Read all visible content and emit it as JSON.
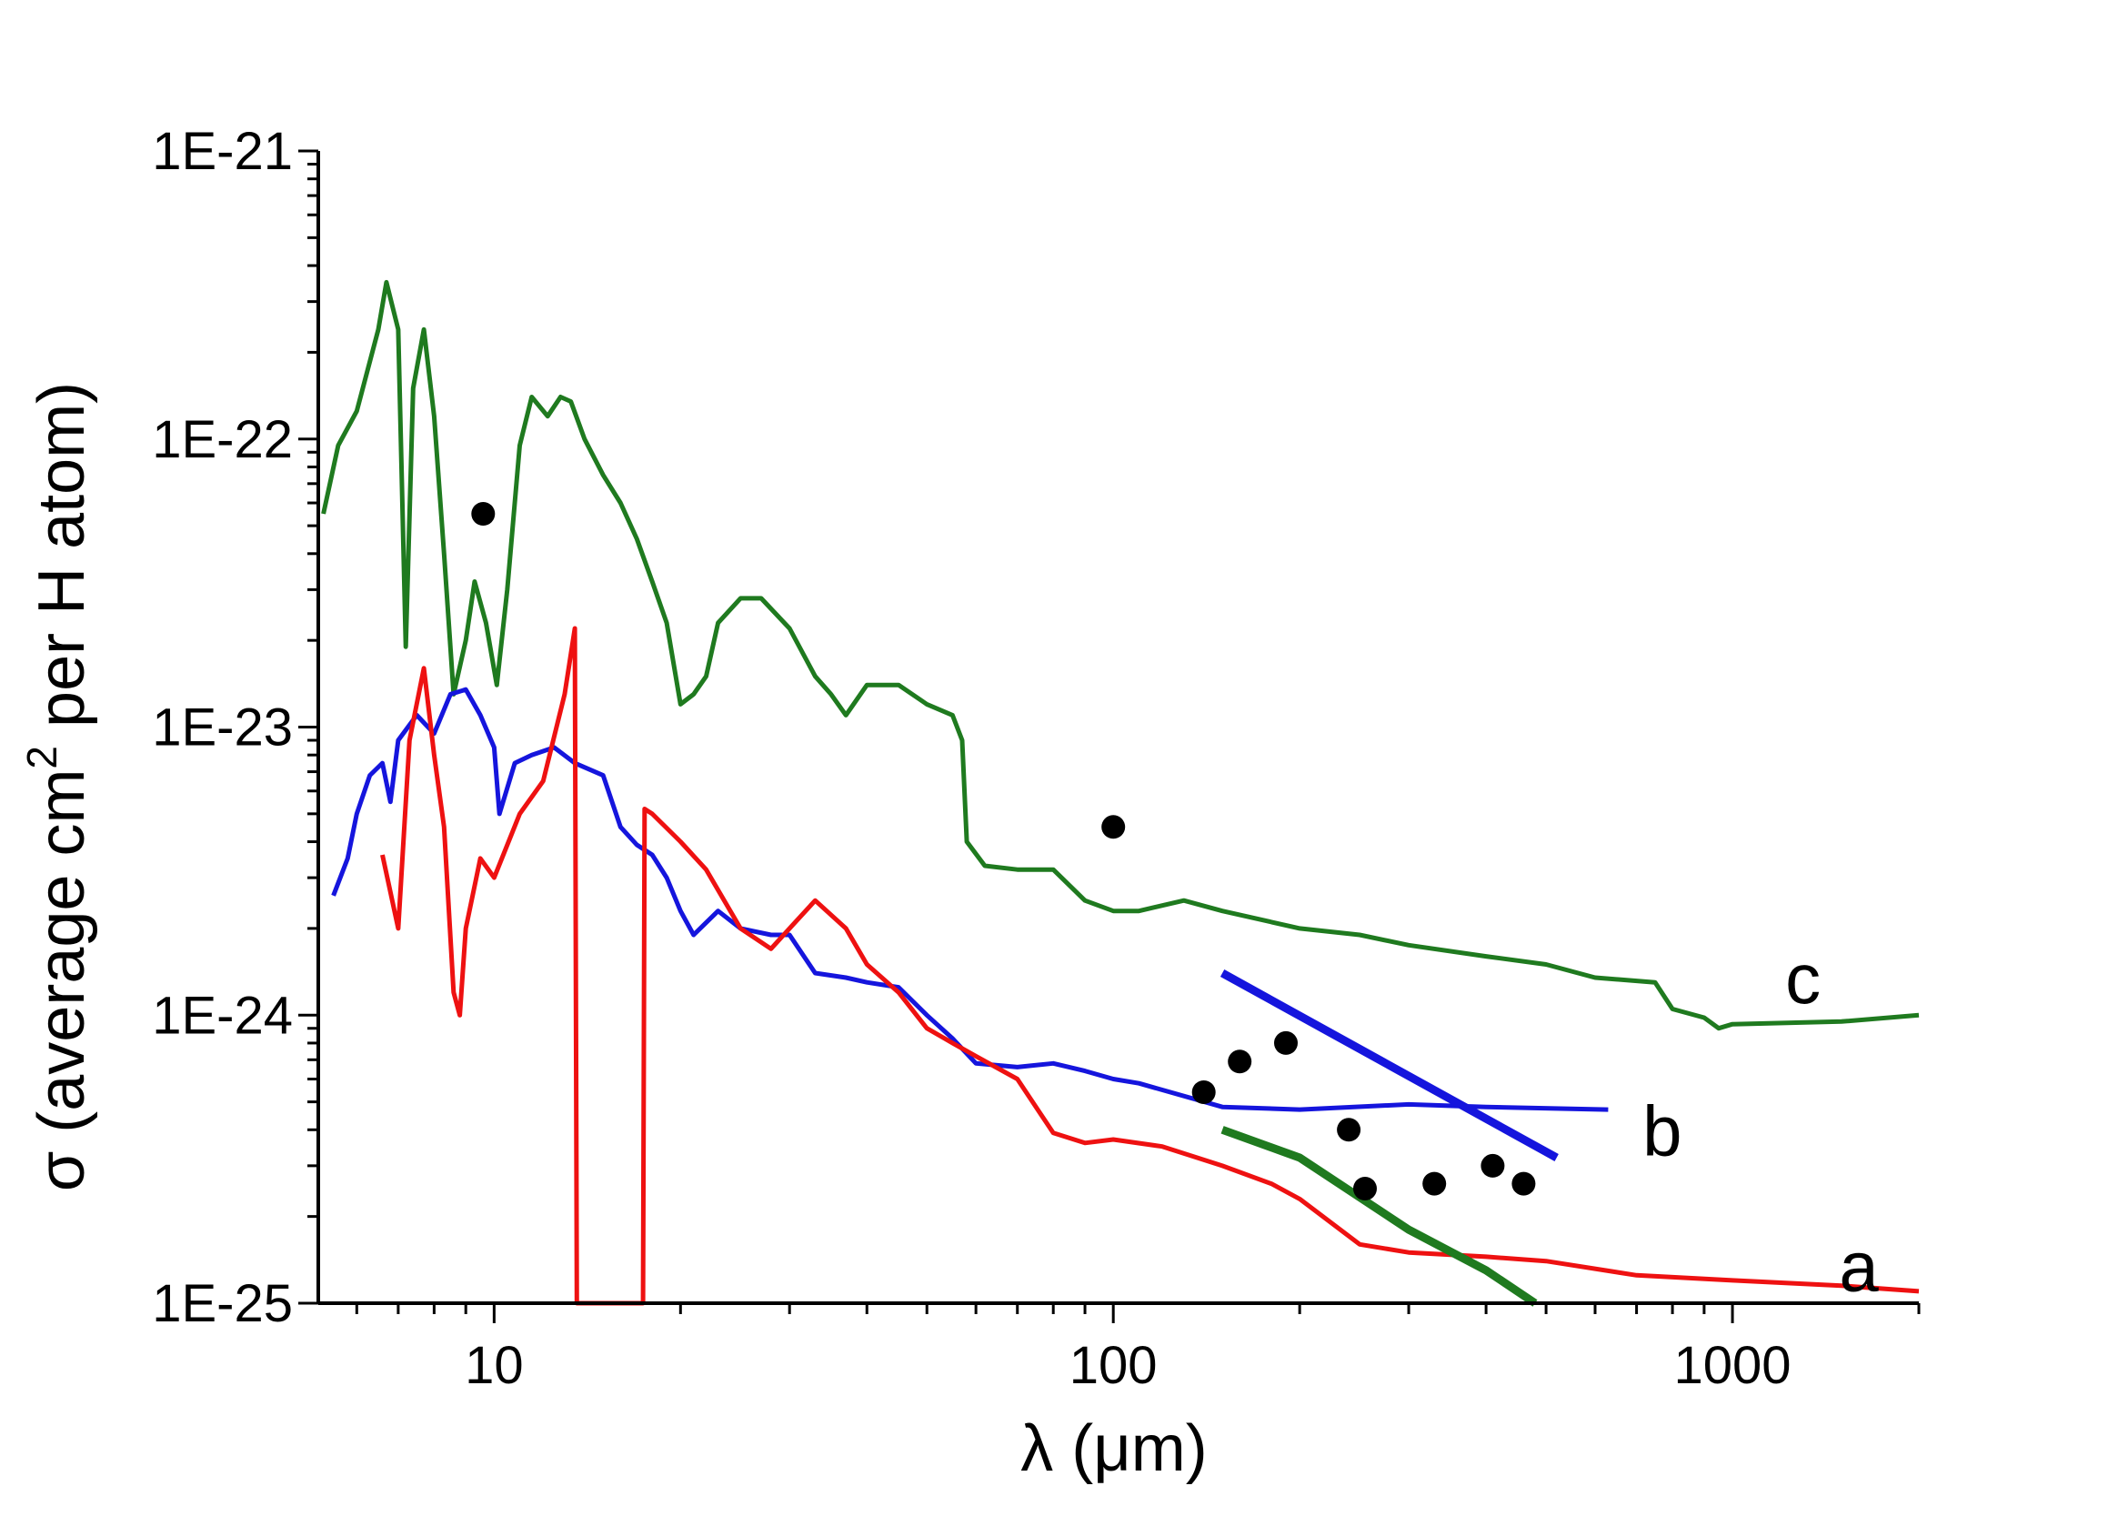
{
  "chart_data": {
    "type": "line",
    "title": "",
    "xlabel": "λ (μm)",
    "ylabel_parts": {
      "prefix": "σ (average cm",
      "superscript": "2",
      "suffix": " per H atom)"
    },
    "x_scale": "log",
    "y_scale": "log",
    "xlim": [
      5.2,
      2000
    ],
    "ylim": [
      1e-25,
      1e-21
    ],
    "x_ticks": [
      10,
      100,
      1000
    ],
    "x_tick_labels": [
      "10",
      "100",
      "1000"
    ],
    "y_ticks": [
      1e-25,
      1e-24,
      1e-23,
      1e-22,
      1e-21
    ],
    "y_tick_labels": [
      "1E-25",
      "1E-24",
      "1E-23",
      "1E-22",
      "1E-21"
    ],
    "grid": false,
    "series": [
      {
        "name": "green-spectrum",
        "label": "c",
        "color": "#1f7a1f",
        "width": 5,
        "points": [
          [
            5.3,
            5.5e-23
          ],
          [
            5.6,
            9.5e-23
          ],
          [
            6.0,
            1.25e-22
          ],
          [
            6.5,
            2.4e-22
          ],
          [
            6.7,
            3.5e-22
          ],
          [
            7.0,
            2.4e-22
          ],
          [
            7.2,
            1.9e-23
          ],
          [
            7.4,
            1.5e-22
          ],
          [
            7.7,
            2.4e-22
          ],
          [
            8.0,
            1.2e-22
          ],
          [
            8.3,
            4e-23
          ],
          [
            8.6,
            1.3e-23
          ],
          [
            9.0,
            2e-23
          ],
          [
            9.3,
            3.2e-23
          ],
          [
            9.7,
            2.3e-23
          ],
          [
            10.1,
            1.4e-23
          ],
          [
            10.5,
            3e-23
          ],
          [
            11.0,
            9.5e-23
          ],
          [
            11.5,
            1.4e-22
          ],
          [
            12.2,
            1.2e-22
          ],
          [
            12.8,
            1.4e-22
          ],
          [
            13.3,
            1.35e-22
          ],
          [
            14,
            1e-22
          ],
          [
            15,
            7.5e-23
          ],
          [
            16,
            6e-23
          ],
          [
            17,
            4.5e-23
          ],
          [
            18,
            3.2e-23
          ],
          [
            19,
            2.3e-23
          ],
          [
            20,
            1.2e-23
          ],
          [
            21,
            1.3e-23
          ],
          [
            22,
            1.5e-23
          ],
          [
            23,
            2.3e-23
          ],
          [
            25,
            2.8e-23
          ],
          [
            27,
            2.8e-23
          ],
          [
            30,
            2.2e-23
          ],
          [
            33,
            1.5e-23
          ],
          [
            35,
            1.3e-23
          ],
          [
            37,
            1.1e-23
          ],
          [
            40,
            1.4e-23
          ],
          [
            45,
            1.4e-23
          ],
          [
            50,
            1.2e-23
          ],
          [
            55,
            1.1e-23
          ],
          [
            57,
            9e-24
          ],
          [
            58,
            4e-24
          ],
          [
            62,
            3.3e-24
          ],
          [
            70,
            3.2e-24
          ],
          [
            80,
            3.2e-24
          ],
          [
            90,
            2.5e-24
          ],
          [
            100,
            2.3e-24
          ],
          [
            110,
            2.3e-24
          ],
          [
            130,
            2.5e-24
          ],
          [
            150,
            2.3e-24
          ],
          [
            200,
            2e-24
          ],
          [
            250,
            1.9e-24
          ],
          [
            300,
            1.75e-24
          ],
          [
            400,
            1.6e-24
          ],
          [
            500,
            1.5e-24
          ],
          [
            600,
            1.35e-24
          ],
          [
            750,
            1.3e-24
          ],
          [
            800,
            1.05e-24
          ],
          [
            900,
            9.8e-25
          ],
          [
            950,
            9e-25
          ],
          [
            1000,
            9.3e-25
          ],
          [
            1500,
            9.5e-25
          ],
          [
            2000,
            1e-24
          ]
        ]
      },
      {
        "name": "blue-spectrum",
        "label": "b",
        "color": "#1515dd",
        "width": 5,
        "points": [
          [
            5.5,
            2.6e-24
          ],
          [
            5.8,
            3.5e-24
          ],
          [
            6.0,
            5e-24
          ],
          [
            6.3,
            6.8e-24
          ],
          [
            6.6,
            7.5e-24
          ],
          [
            6.8,
            5.5e-24
          ],
          [
            7.0,
            9e-24
          ],
          [
            7.5,
            1.1e-23
          ],
          [
            8.0,
            9.5e-24
          ],
          [
            8.5,
            1.3e-23
          ],
          [
            9.0,
            1.35e-23
          ],
          [
            9.5,
            1.1e-23
          ],
          [
            10.0,
            8.5e-24
          ],
          [
            10.2,
            5e-24
          ],
          [
            10.8,
            7.5e-24
          ],
          [
            11.5,
            8e-24
          ],
          [
            12.5,
            8.5e-24
          ],
          [
            13.5,
            7.5e-24
          ],
          [
            15,
            6.8e-24
          ],
          [
            16,
            4.5e-24
          ],
          [
            17,
            3.9e-24
          ],
          [
            18,
            3.6e-24
          ],
          [
            19,
            3e-24
          ],
          [
            20,
            2.3e-24
          ],
          [
            21,
            1.9e-24
          ],
          [
            23,
            2.3e-24
          ],
          [
            25,
            2e-24
          ],
          [
            28,
            1.9e-24
          ],
          [
            30,
            1.9e-24
          ],
          [
            33,
            1.4e-24
          ],
          [
            37,
            1.35e-24
          ],
          [
            40,
            1.3e-24
          ],
          [
            45,
            1.25e-24
          ],
          [
            50,
            1e-24
          ],
          [
            55,
            8.3e-25
          ],
          [
            60,
            6.8e-25
          ],
          [
            70,
            6.6e-25
          ],
          [
            80,
            6.8e-25
          ],
          [
            90,
            6.4e-25
          ],
          [
            100,
            6e-25
          ],
          [
            110,
            5.8e-25
          ],
          [
            150,
            4.8e-25
          ],
          [
            200,
            4.7e-25
          ],
          [
            300,
            4.9e-25
          ],
          [
            400,
            4.8e-25
          ],
          [
            630,
            4.7e-25
          ]
        ]
      },
      {
        "name": "red-spectrum",
        "label": "a",
        "color": "#ee1111",
        "width": 5,
        "points": [
          [
            6.6,
            3.6e-24
          ],
          [
            7.0,
            2e-24
          ],
          [
            7.3,
            9e-24
          ],
          [
            7.7,
            1.6e-23
          ],
          [
            8.0,
            8e-24
          ],
          [
            8.3,
            4.5e-24
          ],
          [
            8.6,
            1.2e-24
          ],
          [
            8.8,
            1e-24
          ],
          [
            9.0,
            2e-24
          ],
          [
            9.5,
            3.5e-24
          ],
          [
            10,
            3e-24
          ],
          [
            11,
            5e-24
          ],
          [
            12,
            6.5e-24
          ],
          [
            13,
            1.3e-23
          ],
          [
            13.5,
            2.2e-23
          ],
          [
            13.6,
            1e-25
          ],
          [
            17.4,
            1e-25
          ],
          [
            17.5,
            5.2e-24
          ],
          [
            18,
            5e-24
          ],
          [
            20,
            4e-24
          ],
          [
            22,
            3.2e-24
          ],
          [
            25,
            2e-24
          ],
          [
            28,
            1.7e-24
          ],
          [
            30,
            2e-24
          ],
          [
            33,
            2.5e-24
          ],
          [
            37,
            2e-24
          ],
          [
            40,
            1.5e-24
          ],
          [
            45,
            1.2e-24
          ],
          [
            50,
            9e-25
          ],
          [
            55,
            8e-25
          ],
          [
            60,
            7.2e-25
          ],
          [
            70,
            6e-25
          ],
          [
            80,
            3.9e-25
          ],
          [
            90,
            3.6e-25
          ],
          [
            100,
            3.7e-25
          ],
          [
            120,
            3.5e-25
          ],
          [
            150,
            3e-25
          ],
          [
            180,
            2.6e-25
          ],
          [
            200,
            2.3e-25
          ],
          [
            250,
            1.6e-25
          ],
          [
            300,
            1.5e-25
          ],
          [
            400,
            1.45e-25
          ],
          [
            500,
            1.4e-25
          ],
          [
            700,
            1.25e-25
          ],
          [
            1000,
            1.2e-25
          ],
          [
            1500,
            1.15e-25
          ],
          [
            2000,
            1.1e-25
          ]
        ]
      },
      {
        "name": "blue-fit-line",
        "label": "",
        "color": "#1515dd",
        "width": 9,
        "points": [
          [
            150,
            1.4e-24
          ],
          [
            520,
            3.2e-25
          ]
        ]
      },
      {
        "name": "green-fit-line",
        "label": "",
        "color": "#1f7a1f",
        "width": 9,
        "points": [
          [
            150,
            4e-25
          ],
          [
            200,
            3.2e-25
          ],
          [
            300,
            1.8e-25
          ],
          [
            400,
            1.3e-25
          ],
          [
            480,
            1e-25
          ]
        ]
      }
    ],
    "scatter": {
      "name": "black-dots",
      "color": "#000000",
      "points": [
        [
          9.6,
          5.5e-23
        ],
        [
          100,
          4.5e-24
        ],
        [
          140,
          5.4e-25
        ],
        [
          160,
          6.9e-25
        ],
        [
          190,
          8e-25
        ],
        [
          240,
          4e-25
        ],
        [
          255,
          2.5e-25
        ],
        [
          330,
          2.6e-25
        ],
        [
          410,
          3e-25
        ],
        [
          460,
          2.6e-25
        ]
      ]
    },
    "curve_labels": [
      {
        "text": "c",
        "x": 1300,
        "y": 1.35e-24
      },
      {
        "text": "b",
        "x": 770,
        "y": 4e-25
      },
      {
        "text": "a",
        "x": 1600,
        "y": 1.35e-25
      }
    ]
  }
}
